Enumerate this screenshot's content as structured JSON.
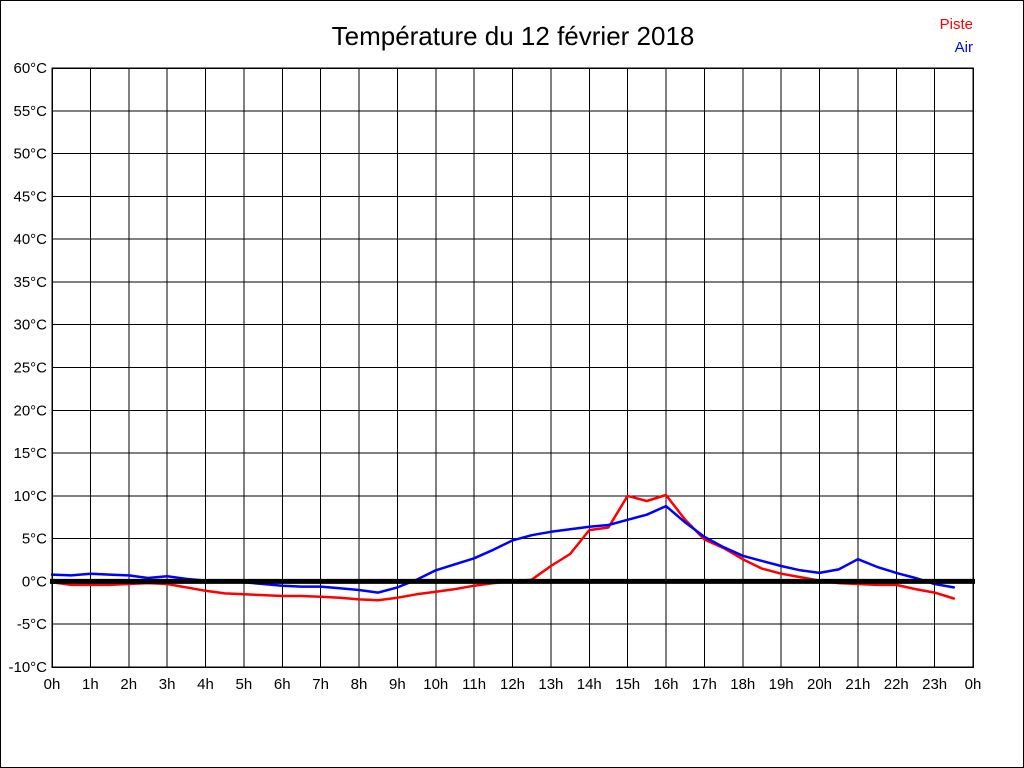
{
  "header": {
    "title": "Température du 12 février 2018"
  },
  "legend": {
    "items": [
      {
        "label": "Piste",
        "color": "#ff0000"
      },
      {
        "label": "Air",
        "color": "#0000ff"
      }
    ]
  },
  "chart_data": {
    "type": "line",
    "title": "Température du 12 février 2018",
    "xlabel": "",
    "ylabel": "",
    "xlim": [
      0,
      24
    ],
    "ylim": [
      -10,
      60
    ],
    "grid": true,
    "zero_line": true,
    "legend_position": "top-right",
    "x_tick_labels": [
      "0h",
      "1h",
      "2h",
      "3h",
      "4h",
      "5h",
      "6h",
      "7h",
      "8h",
      "9h",
      "10h",
      "11h",
      "12h",
      "13h",
      "14h",
      "15h",
      "16h",
      "17h",
      "18h",
      "19h",
      "20h",
      "21h",
      "22h",
      "23h",
      "0h"
    ],
    "y_tick_labels": [
      "60°C",
      "55°C",
      "50°C",
      "45°C",
      "40°C",
      "35°C",
      "30°C",
      "25°C",
      "20°C",
      "15°C",
      "10°C",
      "5°C",
      "0°C",
      "-5°C",
      "-10°C"
    ],
    "x": [
      0,
      0.5,
      1,
      1.5,
      2,
      2.5,
      3,
      3.5,
      4,
      4.5,
      5,
      5.5,
      6,
      6.5,
      7,
      7.5,
      8,
      8.5,
      9,
      9.5,
      10,
      10.5,
      11,
      11.5,
      12,
      12.5,
      13,
      13.5,
      14,
      14.5,
      15,
      15.5,
      16,
      16.5,
      17,
      17.5,
      18,
      18.5,
      19,
      19.5,
      20,
      20.5,
      21,
      21.5,
      22,
      22.5,
      23,
      23.5
    ],
    "series": [
      {
        "name": "Piste",
        "color": "#ff0000",
        "values": [
          -0.1,
          -0.4,
          -0.4,
          -0.4,
          -0.3,
          -0.2,
          -0.3,
          -0.7,
          -1.1,
          -1.4,
          -1.5,
          -1.6,
          -1.7,
          -1.7,
          -1.8,
          -1.9,
          -2.1,
          -2.2,
          -1.9,
          -1.5,
          -1.2,
          -0.9,
          -0.5,
          -0.2,
          0.0,
          0.2,
          1.8,
          3.2,
          6.0,
          6.3,
          10.0,
          9.4,
          10.1,
          7.2,
          4.9,
          3.9,
          2.6,
          1.5,
          0.9,
          0.5,
          0.1,
          -0.2,
          -0.3,
          -0.4,
          -0.4,
          -0.9,
          -1.3,
          -2.0
        ]
      },
      {
        "name": "Air",
        "color": "#0000ff",
        "values": [
          0.8,
          0.7,
          0.9,
          0.8,
          0.7,
          0.4,
          0.6,
          0.3,
          0.1,
          0.0,
          -0.1,
          -0.3,
          -0.5,
          -0.6,
          -0.6,
          -0.8,
          -1.0,
          -1.3,
          -0.7,
          0.2,
          1.3,
          2.0,
          2.7,
          3.7,
          4.8,
          5.4,
          5.8,
          6.1,
          6.4,
          6.6,
          7.2,
          7.8,
          8.8,
          6.9,
          5.2,
          4.0,
          3.0,
          2.4,
          1.8,
          1.3,
          1.0,
          1.4,
          2.6,
          1.7,
          1.0,
          0.4,
          -0.3,
          -0.7
        ]
      }
    ]
  }
}
